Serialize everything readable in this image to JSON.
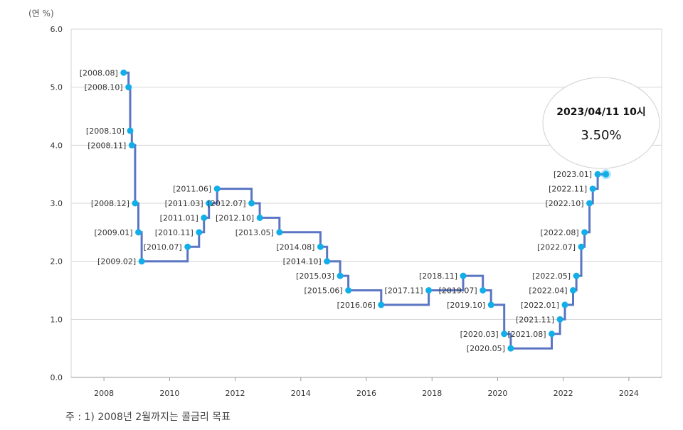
{
  "chart_data": {
    "type": "line",
    "step": true,
    "unit_label": "(연 %)",
    "ylim": [
      0,
      6
    ],
    "yticks": [
      "0.0",
      "1.0",
      "2.0",
      "3.0",
      "4.0",
      "5.0",
      "6.0"
    ],
    "xlim": [
      2007,
      2025
    ],
    "xticks": [
      "2008",
      "2010",
      "2012",
      "2014",
      "2016",
      "2018",
      "2020",
      "2022",
      "2024"
    ],
    "grid": true,
    "points": [
      {
        "label": "[2008.08]",
        "x": 2008.6,
        "y": 5.25
      },
      {
        "label": "[2008.10]",
        "x": 2008.75,
        "y": 5.0
      },
      {
        "label": "[2008.10]",
        "x": 2008.8,
        "y": 4.25
      },
      {
        "label": "[2008.11]",
        "x": 2008.85,
        "y": 4.0
      },
      {
        "label": "[2008.12]",
        "x": 2008.95,
        "y": 3.0
      },
      {
        "label": "[2009.01]",
        "x": 2009.05,
        "y": 2.5
      },
      {
        "label": "[2009.02]",
        "x": 2009.15,
        "y": 2.0
      },
      {
        "label": "[2010.07]",
        "x": 2010.55,
        "y": 2.25
      },
      {
        "label": "[2010.11]",
        "x": 2010.9,
        "y": 2.5
      },
      {
        "label": "[2011.01]",
        "x": 2011.05,
        "y": 2.75
      },
      {
        "label": "[2011.03]",
        "x": 2011.2,
        "y": 3.0
      },
      {
        "label": "[2011.06]",
        "x": 2011.45,
        "y": 3.25
      },
      {
        "label": "[2012.07]",
        "x": 2012.5,
        "y": 3.0
      },
      {
        "label": "[2012.10]",
        "x": 2012.75,
        "y": 2.75
      },
      {
        "label": "[2013.05]",
        "x": 2013.35,
        "y": 2.5
      },
      {
        "label": "[2014.08]",
        "x": 2014.6,
        "y": 2.25
      },
      {
        "label": "[2014.10]",
        "x": 2014.8,
        "y": 2.0
      },
      {
        "label": "[2015.03]",
        "x": 2015.2,
        "y": 1.75
      },
      {
        "label": "[2015.06]",
        "x": 2015.45,
        "y": 1.5
      },
      {
        "label": "[2016.06]",
        "x": 2016.45,
        "y": 1.25
      },
      {
        "label": "[2017.11]",
        "x": 2017.9,
        "y": 1.5
      },
      {
        "label": "[2018.11]",
        "x": 2018.95,
        "y": 1.75
      },
      {
        "label": "[2019.07]",
        "x": 2019.55,
        "y": 1.5
      },
      {
        "label": "[2019.10]",
        "x": 2019.8,
        "y": 1.25
      },
      {
        "label": "[2020.03]",
        "x": 2020.2,
        "y": 0.75
      },
      {
        "label": "[2020.05]",
        "x": 2020.4,
        "y": 0.5
      },
      {
        "label": "[2021.08]",
        "x": 2021.65,
        "y": 0.75
      },
      {
        "label": "[2021.11]",
        "x": 2021.9,
        "y": 1.0
      },
      {
        "label": "[2022.01]",
        "x": 2022.05,
        "y": 1.25
      },
      {
        "label": "[2022.04]",
        "x": 2022.3,
        "y": 1.5
      },
      {
        "label": "[2022.05]",
        "x": 2022.4,
        "y": 1.75
      },
      {
        "label": "[2022.07]",
        "x": 2022.55,
        "y": 2.25
      },
      {
        "label": "[2022.08]",
        "x": 2022.65,
        "y": 2.5
      },
      {
        "label": "[2022.10]",
        "x": 2022.8,
        "y": 3.0
      },
      {
        "label": "[2022.11]",
        "x": 2022.9,
        "y": 3.25
      },
      {
        "label": "[2023.01]",
        "x": 2023.05,
        "y": 3.5
      }
    ],
    "last_point": {
      "x": 2023.3,
      "y": 3.5
    },
    "tooltip": {
      "date": "2023/04/11 10시",
      "value": "3.50%"
    },
    "colors": {
      "line": "#5a75c2",
      "marker": "#12aee8",
      "grid": "#d5d5d5",
      "axis": "#999999"
    }
  },
  "footnote": "주 : 1) 2008년 2월까지는 콜금리 목표"
}
